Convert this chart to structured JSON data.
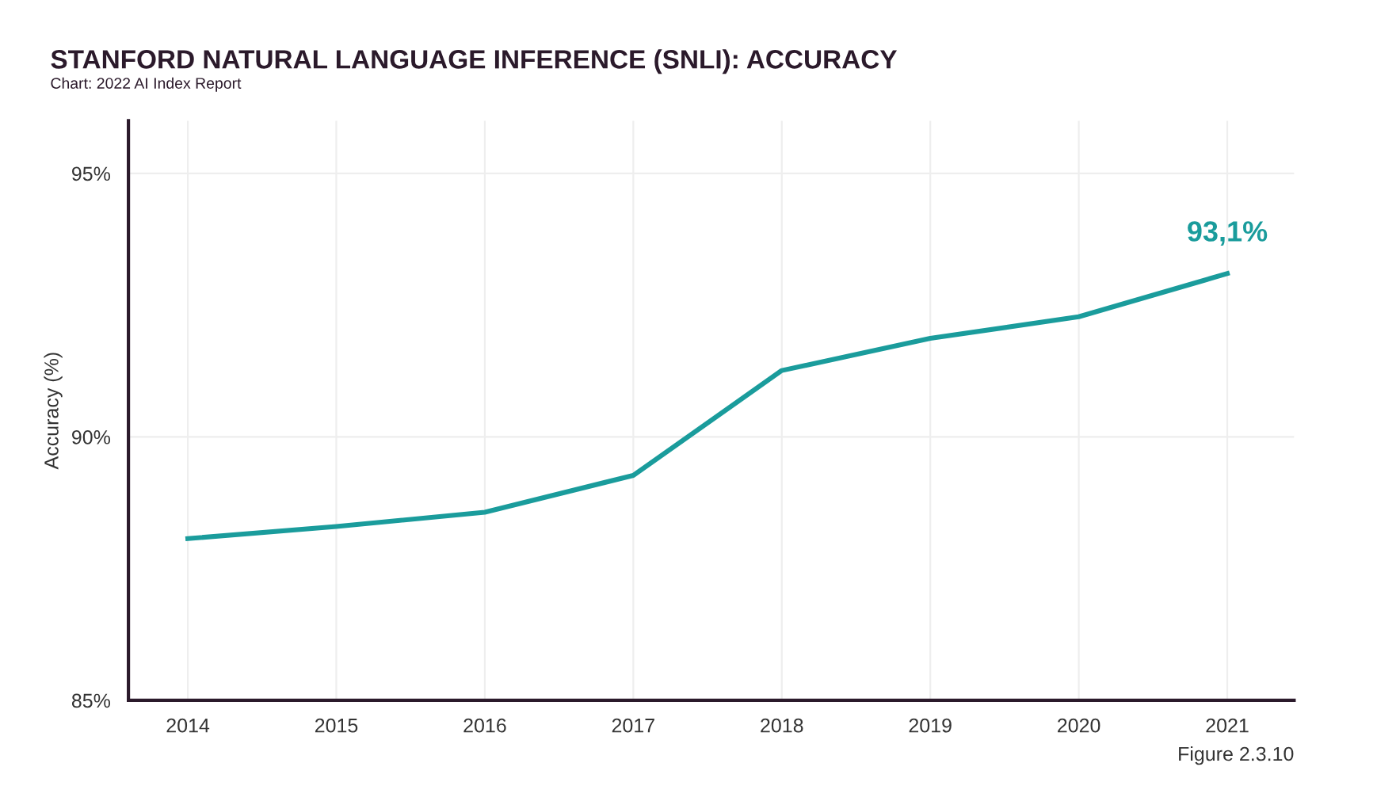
{
  "chart_data": {
    "type": "line",
    "title": "STANFORD NATURAL LANGUAGE INFERENCE (SNLI): ACCURACY",
    "subtitle": "Chart: 2022 AI Index Report",
    "ylabel": "Accuracy (%)",
    "categories": [
      "2014",
      "2015",
      "2016",
      "2017",
      "2018",
      "2019",
      "2020",
      "2021"
    ],
    "series": [
      {
        "color": "#1a9c9c",
        "values": [
          88.07,
          88.3,
          88.57,
          89.27,
          91.26,
          91.87,
          92.28,
          93.1
        ],
        "value_labels": [
          null,
          null,
          null,
          null,
          null,
          null,
          null,
          "93,1%"
        ]
      }
    ],
    "ylim": [
      85,
      96
    ],
    "yticks": [
      {
        "value": 85,
        "label": "85%"
      },
      {
        "value": 90,
        "label": "90%"
      },
      {
        "value": 95,
        "label": "95%"
      }
    ],
    "grid": true,
    "legend": false,
    "marker": "none",
    "line_style": "solid",
    "annotations": [
      "Figure 2.3.10"
    ]
  }
}
